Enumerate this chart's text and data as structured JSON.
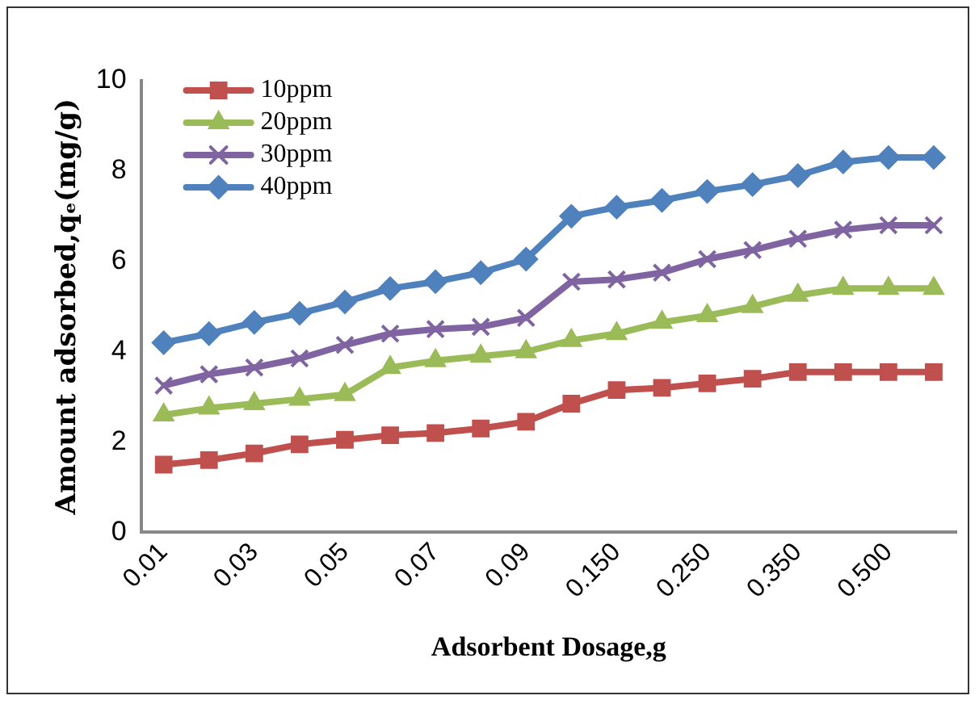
{
  "chart_data": {
    "type": "line",
    "xlabel": "Adsorbent Dosage,g",
    "ylabel": "Amount adsorbed,qₑ(mg/g)",
    "categories": [
      "0.01",
      null,
      "0.03",
      null,
      "0.05",
      null,
      "0.07",
      null,
      "0.09",
      null,
      "0.150",
      null,
      "0.250",
      null,
      "0.350",
      null,
      "0.500",
      null
    ],
    "ylim": [
      0,
      10
    ],
    "yticks": [
      0,
      2,
      4,
      6,
      8,
      10
    ],
    "grid": false,
    "legend": "top left",
    "series": [
      {
        "name": "10ppm",
        "color": "#c0504d",
        "marker": "square",
        "values": [
          1.5,
          1.6,
          1.75,
          1.95,
          2.05,
          2.15,
          2.2,
          2.3,
          2.45,
          2.85,
          3.15,
          3.2,
          3.3,
          3.4,
          3.55,
          3.55,
          3.55,
          3.55
        ]
      },
      {
        "name": "20ppm",
        "color": "#9bbb59",
        "marker": "triangle",
        "values": [
          2.6,
          2.75,
          2.85,
          2.95,
          3.05,
          3.65,
          3.8,
          3.9,
          4.0,
          4.25,
          4.4,
          4.65,
          4.8,
          5.0,
          5.25,
          5.4,
          5.4,
          5.4
        ]
      },
      {
        "name": "30ppm",
        "color": "#8064a2",
        "marker": "cross",
        "values": [
          3.25,
          3.5,
          3.65,
          3.85,
          4.15,
          4.4,
          4.5,
          4.55,
          4.75,
          5.55,
          5.6,
          5.75,
          6.05,
          6.25,
          6.5,
          6.7,
          6.8,
          6.8
        ]
      },
      {
        "name": "40ppm",
        "color": "#4f81bd",
        "marker": "diamond",
        "values": [
          4.2,
          4.4,
          4.65,
          4.85,
          5.1,
          5.4,
          5.55,
          5.75,
          6.05,
          7.0,
          7.2,
          7.35,
          7.55,
          7.7,
          7.9,
          8.2,
          8.3,
          8.3
        ]
      }
    ]
  }
}
